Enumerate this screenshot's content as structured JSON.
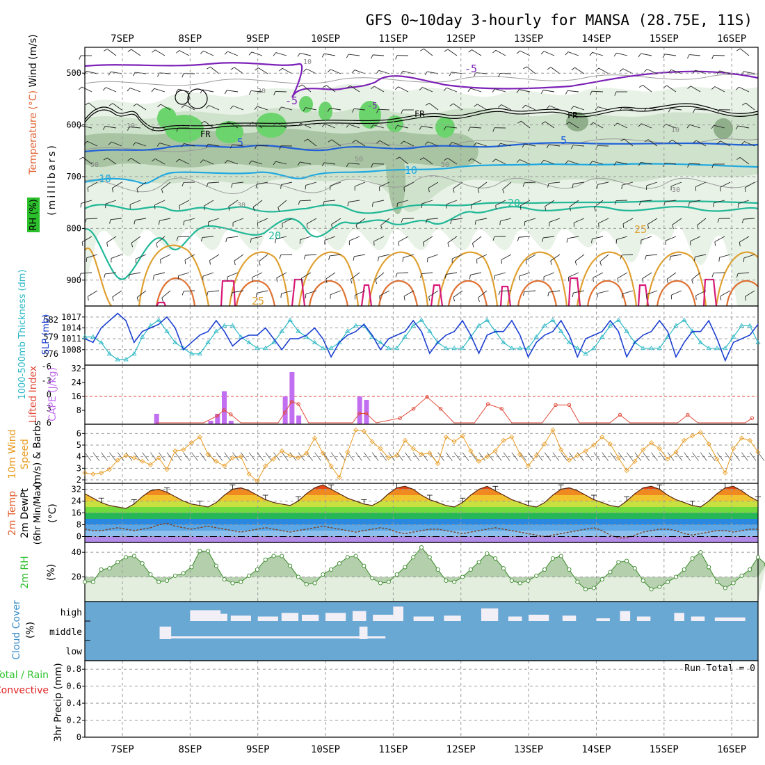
{
  "title": "GFS 0~10day 3-hourly for MANSA (28.75E, 11S)",
  "dates": [
    "7SEP",
    "8SEP",
    "9SEP",
    "10SEP",
    "11SEP",
    "12SEP",
    "13SEP",
    "14SEP",
    "15SEP",
    "16SEP"
  ],
  "panels": {
    "upper": {
      "ylabel_mb": "(millibars)",
      "ylabel_wind": "Wind (m/s)",
      "ylabel_temp": "Temperature (°C)",
      "ylabel_rh": "RH (%)",
      "yticks": [
        500,
        600,
        700,
        800,
        900
      ],
      "ylim": [
        450,
        950
      ],
      "fr_labels": [
        "FR",
        "FR",
        "FR"
      ],
      "temp_labels": [
        "-5",
        "-5",
        "-5",
        "5",
        "5",
        "10",
        "10",
        "20",
        "20",
        "25",
        "25"
      ],
      "rh_labels": [
        "10",
        "30",
        "50",
        "50",
        "50",
        "10",
        "10",
        "30",
        "30"
      ]
    },
    "slp": {
      "ylabel_left": "1000-500mb Thickness (dm)",
      "ylabel_right": "SLP (mb)",
      "left_ticks": [
        582,
        579,
        576
      ],
      "right_ticks": [
        1017,
        1014,
        1011,
        1008
      ]
    },
    "cape": {
      "ylabel_li": "Lifted Index",
      "ylabel_cape": "CAPE (J/kg)",
      "li_ticks": [
        -6,
        -3,
        0,
        3,
        6
      ],
      "li_tick_labels": [
        "-6",
        "-3",
        "0",
        "3",
        "6"
      ],
      "cape_ticks": [
        32,
        24,
        16,
        8
      ],
      "cape_tick_labels": [
        "32",
        "24",
        "16",
        "8"
      ],
      "cape_ylim": [
        0,
        32
      ],
      "li_ylim": [
        -6,
        6
      ]
    },
    "wind": {
      "ylabel_a": "10m Wind",
      "ylabel_b": "Speed",
      "ylabel_c": "(m/s) & Barbs",
      "yticks": [
        6,
        5,
        4,
        3,
        2
      ],
      "tick_labels": [
        "6",
        "5",
        "4",
        "3",
        "2"
      ],
      "ylim": [
        1.7,
        6.8
      ]
    },
    "temp": {
      "ylabel_a": "2m Temp",
      "ylabel_b": "2m DewPt",
      "ylabel_c": "(6hr Min/Max)",
      "ylabel_d": "(°C)",
      "yticks": [
        32,
        24,
        16,
        8,
        0
      ],
      "tick_labels": [
        "32",
        "24",
        "16",
        "8",
        "0"
      ],
      "ylim": [
        -4,
        36
      ]
    },
    "rh": {
      "ylabel_a": "2m RH",
      "ylabel_b": "(%)",
      "yticks": [
        40,
        20
      ],
      "tick_labels": [
        "40",
        "20"
      ],
      "ylim": [
        0,
        48
      ]
    },
    "cloud": {
      "ylabel_a": "Cloud Cover",
      "ylabel_b": "(%)",
      "levels": [
        "high",
        "middle",
        "low"
      ]
    },
    "precip": {
      "ylabel_a": "Total / Rain",
      "ylabel_b": "Convective",
      "ylabel_c": "3hr Precip (mm)",
      "yticks": [
        0,
        0.2,
        0.4,
        0.6,
        0.8
      ],
      "tick_labels": [
        "0",
        "0.2",
        "0.4",
        "0.6",
        "0.8"
      ],
      "ylim": [
        0,
        0.9
      ],
      "run_total": "Run Total = 0"
    }
  },
  "colors": {
    "slp": "#1c3fd1",
    "thickness": "#2ab7c4",
    "cape": "#c26ef0",
    "lifted_index": "#e04a3a",
    "wind_speed": "#e89a1e",
    "rh_fill": "#8fbf8a",
    "rh_line": "#3a8a2a",
    "cloud": "#6aa8d4",
    "clear": "#f3eff6",
    "temp_label": "#e06030",
    "rh_label": "#2cbf2c",
    "cloud_label": "#3a8ec8",
    "precip_label_a": "#2fc42f",
    "precip_label_b": "#e02020",
    "minus5": "#7c20b8",
    "c5": "#2060d8",
    "c10": "#20a8e0",
    "c20": "#20b898",
    "c25": "#e0a030",
    "c30": "#e07030",
    "c35": "#d81878"
  },
  "chart_data": [
    {
      "type": "line",
      "name": "slp",
      "unit": "mb",
      "values": [
        1011,
        1010,
        1014,
        1016,
        1018,
        1016,
        1010,
        1013,
        1014,
        1015,
        1017,
        1014,
        1008,
        1010,
        1012,
        1013,
        1016,
        1013,
        1009,
        1011,
        1012,
        1012,
        1014,
        1011,
        1008,
        1011,
        1011,
        1012,
        1014,
        1011,
        1006,
        1010,
        1012,
        1013,
        1015,
        1012,
        1008,
        1011,
        1012,
        1013,
        1016,
        1013,
        1007,
        1010,
        1012,
        1013,
        1016,
        1012,
        1007,
        1012,
        1013,
        1013,
        1016,
        1012,
        1006,
        1010,
        1012,
        1013,
        1016,
        1012,
        1006,
        1011,
        1012,
        1013,
        1016,
        1013,
        1006,
        1010,
        1012,
        1013,
        1016,
        1013,
        1006,
        1010,
        1013,
        1013,
        1016,
        1011,
        1005,
        1010,
        1011,
        1012,
        1015
      ]
    },
    {
      "type": "line",
      "name": "thickness",
      "unit": "dm",
      "values": [
        579,
        579,
        578,
        576,
        575,
        575,
        576,
        579,
        581,
        582,
        580,
        578,
        577,
        576,
        576,
        578,
        580,
        581,
        581,
        579,
        578,
        577,
        577,
        578,
        580,
        582,
        580,
        579,
        578,
        577,
        577,
        578,
        580,
        581,
        581,
        579,
        578,
        577,
        577,
        579,
        581,
        582,
        580,
        578,
        577,
        577,
        577,
        579,
        581,
        582,
        580,
        578,
        577,
        577,
        577,
        579,
        581,
        582,
        580,
        578,
        577,
        576,
        577,
        579,
        581,
        582,
        580,
        578,
        577,
        577,
        577,
        579,
        581,
        582,
        580,
        578,
        577,
        577,
        577,
        579,
        581,
        581,
        578
      ]
    },
    {
      "type": "bar",
      "name": "cape",
      "unit": "J/kg",
      "points": [
        [
          7.5,
          6
        ],
        [
          8.3,
          2
        ],
        [
          8.4,
          6
        ],
        [
          8.5,
          19
        ],
        [
          8.6,
          2
        ],
        [
          9.4,
          16
        ],
        [
          9.5,
          30
        ],
        [
          9.6,
          5
        ],
        [
          10.5,
          16
        ],
        [
          10.6,
          14
        ]
      ]
    },
    {
      "type": "line",
      "name": "lifted_index",
      "values": [
        [
          7.5,
          6
        ],
        [
          8.2,
          6
        ],
        [
          8.4,
          4.5
        ],
        [
          8.5,
          3.3
        ],
        [
          8.6,
          4.2
        ],
        [
          8.75,
          6
        ],
        [
          9.3,
          6
        ],
        [
          9.4,
          3.8
        ],
        [
          9.5,
          1.5
        ],
        [
          9.6,
          2
        ],
        [
          9.75,
          6
        ],
        [
          10.4,
          6
        ],
        [
          10.5,
          4
        ],
        [
          10.6,
          4
        ],
        [
          10.75,
          6
        ],
        [
          11.1,
          5
        ],
        [
          11.3,
          3
        ],
        [
          11.5,
          0.5
        ],
        [
          11.7,
          3
        ],
        [
          11.9,
          6
        ],
        [
          12.2,
          6
        ],
        [
          12.4,
          2
        ],
        [
          12.6,
          3
        ],
        [
          12.75,
          6
        ],
        [
          13.2,
          6
        ],
        [
          13.4,
          2.2
        ],
        [
          13.6,
          2.2
        ],
        [
          13.75,
          6
        ],
        [
          14.2,
          6
        ],
        [
          14.35,
          4.3
        ],
        [
          14.5,
          6
        ],
        [
          15.2,
          6
        ],
        [
          15.35,
          4.3
        ],
        [
          15.5,
          6
        ],
        [
          16.2,
          6
        ],
        [
          16.3,
          5
        ]
      ]
    },
    {
      "type": "line",
      "name": "wind_speed",
      "unit": "m/s",
      "values": [
        2.6,
        2.5,
        2.6,
        2.9,
        3.7,
        4.1,
        3.9,
        3.6,
        3.3,
        3.9,
        2.9,
        4.5,
        4.6,
        5.2,
        5.7,
        4.2,
        3.6,
        3.2,
        3.9,
        4.0,
        2.5,
        1.9,
        3.2,
        3.8,
        4.5,
        4.1,
        3.9,
        4.3,
        5.6,
        4.3,
        3.2,
        2.2,
        4.4,
        6.3,
        6.2,
        5.3,
        4.7,
        3.9,
        4.1,
        5.4,
        4.7,
        4.2,
        4.3,
        3.4,
        5.7,
        5.3,
        5.8,
        4.5,
        3.6,
        4.0,
        4.5,
        5.4,
        5.7,
        4.2,
        3.2,
        4.1,
        5.1,
        6.3,
        4.6,
        3.7,
        4.1,
        4.5,
        5.0,
        5.7,
        5.1,
        3.9,
        2.8,
        3.6,
        4.6,
        5.2,
        4.7,
        3.8,
        4.4,
        5.4,
        5.8,
        6.1,
        5.1,
        3.8,
        2.6,
        4.7,
        5.6,
        5.4,
        4.4
      ]
    },
    {
      "type": "area",
      "name": "temp_2m",
      "unit": "°C",
      "values": [
        29,
        26,
        23,
        21,
        20,
        19,
        22,
        27,
        31,
        32,
        30,
        27,
        24,
        22,
        21,
        20,
        23,
        28,
        32,
        33,
        31,
        28,
        25,
        23,
        22,
        21,
        24,
        29,
        33,
        35,
        32,
        29,
        26,
        24,
        22,
        21,
        24,
        29,
        33,
        34,
        32,
        28,
        25,
        23,
        21,
        20,
        23,
        28,
        32,
        34,
        31,
        28,
        25,
        23,
        21,
        20,
        23,
        28,
        32,
        33,
        31,
        28,
        25,
        23,
        21,
        20,
        24,
        29,
        33,
        34,
        32,
        28,
        25,
        23,
        21,
        20,
        24,
        29,
        33,
        34,
        31,
        27,
        24
      ]
    },
    {
      "type": "line",
      "name": "dewpoint_2m",
      "unit": "°C",
      "values": [
        5,
        4,
        4,
        5,
        6,
        5,
        4,
        5,
        6,
        8,
        9,
        7,
        6,
        5,
        6,
        7,
        6,
        5,
        4,
        3,
        4,
        5,
        6,
        5,
        4,
        3,
        4,
        5,
        6,
        7,
        6,
        5,
        4,
        3,
        4,
        5,
        6,
        5,
        3,
        2,
        3,
        4,
        5,
        5,
        4,
        3,
        2,
        3,
        4,
        5,
        6,
        5,
        4,
        3,
        2,
        1,
        0,
        1,
        2,
        3,
        4,
        5,
        6,
        4,
        1,
        -1,
        -1,
        1,
        3,
        4,
        5,
        5,
        4,
        2,
        1,
        2,
        3,
        4,
        4,
        3,
        4,
        5,
        5
      ]
    },
    {
      "type": "area",
      "name": "rh_2m",
      "unit": "%",
      "values": [
        16,
        16,
        26,
        27,
        32,
        36,
        37,
        31,
        22,
        16,
        17,
        21,
        23,
        28,
        41,
        41,
        29,
        18,
        15,
        16,
        21,
        26,
        34,
        37,
        37,
        29,
        20,
        14,
        15,
        22,
        26,
        31,
        36,
        37,
        29,
        19,
        15,
        16,
        22,
        28,
        36,
        44,
        36,
        26,
        17,
        16,
        20,
        26,
        32,
        39,
        35,
        27,
        17,
        15,
        17,
        21,
        26,
        35,
        37,
        26,
        16,
        10,
        11,
        18,
        24,
        32,
        33,
        27,
        17,
        10,
        12,
        16,
        20,
        26,
        35,
        40,
        28,
        16,
        11,
        15,
        21,
        26,
        36,
        30
      ]
    }
  ]
}
